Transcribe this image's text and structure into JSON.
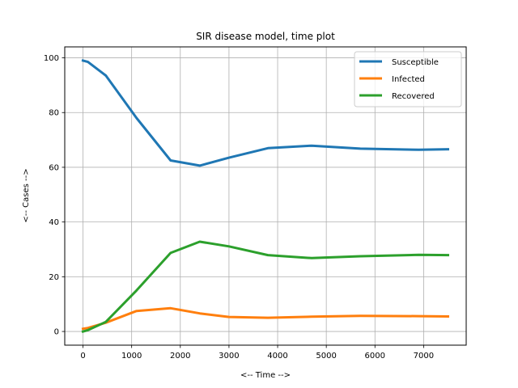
{
  "chart_data": {
    "type": "line",
    "title": "SIR disease model, time plot",
    "xlabel": "<-- Time -->",
    "ylabel": "<-- Cases -->",
    "xlim": [
      -375,
      7875
    ],
    "ylim": [
      -5,
      104
    ],
    "xticks": [
      0,
      1000,
      2000,
      3000,
      4000,
      5000,
      6000,
      7000
    ],
    "yticks": [
      0,
      20,
      40,
      60,
      80,
      100
    ],
    "grid": true,
    "legend_position": "top-right",
    "x": [
      0,
      100,
      470,
      1100,
      1800,
      2400,
      3000,
      3800,
      4700,
      5700,
      6900,
      7500
    ],
    "series": [
      {
        "name": "Susceptible",
        "color": "#1f77b4",
        "values": [
          99,
          98.5,
          93.5,
          78,
          62.5,
          60.6,
          63.5,
          67,
          67.9,
          66.8,
          66.4,
          66.6
        ]
      },
      {
        "name": "Infected",
        "color": "#ff7f0e",
        "values": [
          1,
          1.3,
          3.2,
          7.5,
          8.5,
          6.6,
          5.3,
          5.0,
          5.4,
          5.7,
          5.6,
          5.5
        ]
      },
      {
        "name": "Recovered",
        "color": "#2ca02c",
        "values": [
          0,
          0.5,
          3.5,
          15,
          28.7,
          32.8,
          31.1,
          27.9,
          26.8,
          27.5,
          28.0,
          27.9
        ]
      }
    ]
  }
}
